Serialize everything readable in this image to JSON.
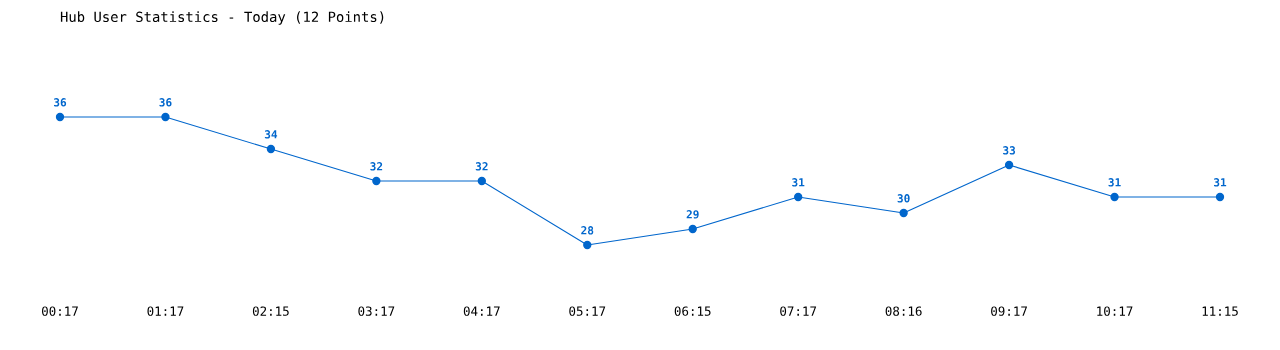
{
  "chart_data": {
    "type": "line",
    "title": "Hub User Statistics - Today (12 Points)",
    "categories": [
      "00:17",
      "01:17",
      "02:15",
      "03:17",
      "04:17",
      "05:17",
      "06:15",
      "07:17",
      "08:16",
      "09:17",
      "10:17",
      "11:15"
    ],
    "series": [
      {
        "color": "#0066cc",
        "values": [
          36,
          36,
          34,
          32,
          32,
          28,
          29,
          31,
          30,
          33,
          31,
          31
        ]
      }
    ],
    "data_labels": true,
    "marker": "circle",
    "line_style": "solid",
    "grid": false,
    "legend": false,
    "tick_labels": "x"
  }
}
